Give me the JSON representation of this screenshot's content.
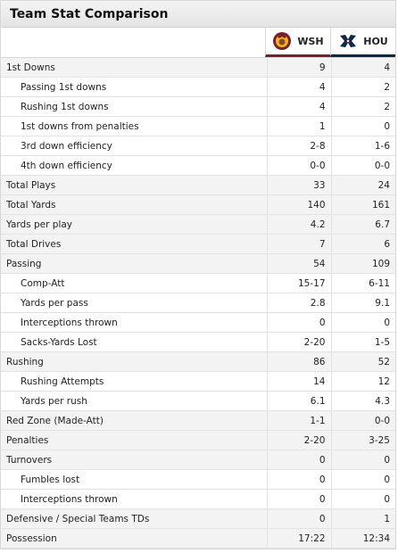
{
  "title": "Team Stat Comparison",
  "teams": {
    "away": {
      "abbr": "WSH",
      "logo": "redskins-logo-icon",
      "color": "#7c1f2c"
    },
    "home": {
      "abbr": "HOU",
      "logo": "texans-logo-icon",
      "color": "#0b2a4a"
    }
  },
  "rows": [
    {
      "label": "1st Downs",
      "away": "9",
      "home": "4",
      "sub": false
    },
    {
      "label": "Passing 1st downs",
      "away": "4",
      "home": "2",
      "sub": true
    },
    {
      "label": "Rushing 1st downs",
      "away": "4",
      "home": "2",
      "sub": true
    },
    {
      "label": "1st downs from penalties",
      "away": "1",
      "home": "0",
      "sub": true
    },
    {
      "label": "3rd down efficiency",
      "away": "2-8",
      "home": "1-6",
      "sub": true
    },
    {
      "label": "4th down efficiency",
      "away": "0-0",
      "home": "0-0",
      "sub": true
    },
    {
      "label": "Total Plays",
      "away": "33",
      "home": "24",
      "sub": false
    },
    {
      "label": "Total Yards",
      "away": "140",
      "home": "161",
      "sub": false
    },
    {
      "label": "Yards per play",
      "away": "4.2",
      "home": "6.7",
      "sub": false
    },
    {
      "label": "Total Drives",
      "away": "7",
      "home": "6",
      "sub": false
    },
    {
      "label": "Passing",
      "away": "54",
      "home": "109",
      "sub": false
    },
    {
      "label": "Comp-Att",
      "away": "15-17",
      "home": "6-11",
      "sub": true
    },
    {
      "label": "Yards per pass",
      "away": "2.8",
      "home": "9.1",
      "sub": true
    },
    {
      "label": "Interceptions thrown",
      "away": "0",
      "home": "0",
      "sub": true
    },
    {
      "label": "Sacks-Yards Lost",
      "away": "2-20",
      "home": "1-5",
      "sub": true
    },
    {
      "label": "Rushing",
      "away": "86",
      "home": "52",
      "sub": false
    },
    {
      "label": "Rushing Attempts",
      "away": "14",
      "home": "12",
      "sub": true
    },
    {
      "label": "Yards per rush",
      "away": "6.1",
      "home": "4.3",
      "sub": true
    },
    {
      "label": "Red Zone (Made-Att)",
      "away": "1-1",
      "home": "0-0",
      "sub": false
    },
    {
      "label": "Penalties",
      "away": "2-20",
      "home": "3-25",
      "sub": false
    },
    {
      "label": "Turnovers",
      "away": "0",
      "home": "0",
      "sub": false
    },
    {
      "label": "Fumbles lost",
      "away": "0",
      "home": "0",
      "sub": true
    },
    {
      "label": "Interceptions thrown",
      "away": "0",
      "home": "0",
      "sub": true
    },
    {
      "label": "Defensive / Special Teams TDs",
      "away": "0",
      "home": "1",
      "sub": false
    },
    {
      "label": "Possession",
      "away": "17:22",
      "home": "12:34",
      "sub": false
    }
  ]
}
